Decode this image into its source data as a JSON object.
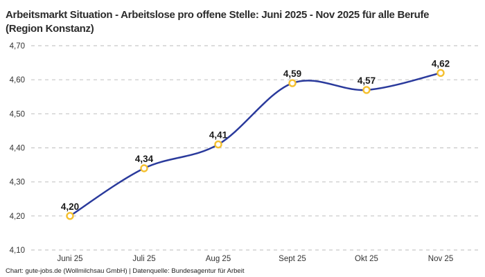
{
  "header": {
    "title": "Arbeitsmarkt Situation - Arbeitslose pro offene Stelle: Juni 2025 - Nov 2025 für alle Berufe (Region Konstanz)"
  },
  "footer": {
    "credit": "Chart: gute-jobs.de (Wollmilchsau GmbH) | Datenquelle: Bundesagentur für Arbeit"
  },
  "colors": {
    "line": "#2a3a9c",
    "marker_ring": "#f5c02f",
    "marker_fill": "#ffffff",
    "grid": "#c6c6c6",
    "axis_text": "#333333",
    "value_text": "#1a1a1a",
    "title_text": "#2b2b2b"
  },
  "chart_data": {
    "type": "line",
    "title": "Arbeitsmarkt Situation - Arbeitslose pro offene Stelle: Juni 2025 - Nov 2025 für alle Berufe (Region Konstanz)",
    "categories": [
      "Juni 25",
      "Juli 25",
      "Aug 25",
      "Sept 25",
      "Okt 25",
      "Nov 25"
    ],
    "values": [
      4.2,
      4.34,
      4.41,
      4.59,
      4.57,
      4.62
    ],
    "value_labels": [
      "4,20",
      "4,34",
      "4,41",
      "4,59",
      "4,57",
      "4,62"
    ],
    "xlabel": "",
    "ylabel": "",
    "ylim": [
      4.1,
      4.7
    ],
    "yticks": [
      4.7,
      4.6,
      4.5,
      4.4,
      4.3,
      4.2,
      4.1
    ],
    "ytick_labels": [
      "4,70",
      "4,60",
      "4,50",
      "4,40",
      "4,30",
      "4,20",
      "4,10"
    ],
    "grid": "horizontal-dashed",
    "legend": "none",
    "smoothing": "spline"
  }
}
